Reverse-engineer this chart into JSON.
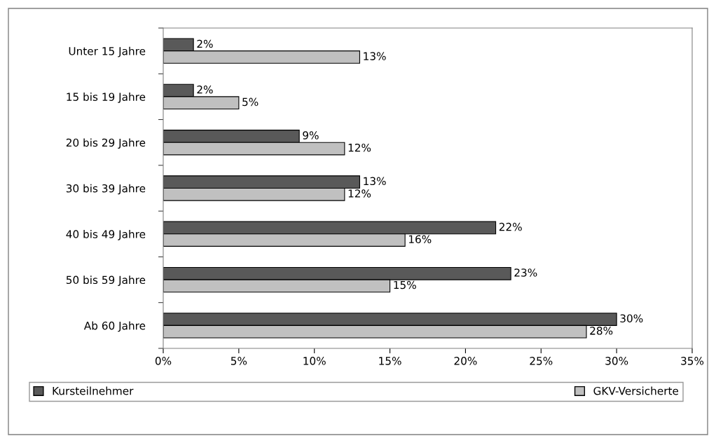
{
  "chart_data": {
    "type": "bar",
    "orientation": "horizontal",
    "categories": [
      "Unter 15 Jahre",
      "15 bis 19 Jahre",
      "20 bis 29 Jahre",
      "30 bis 39 Jahre",
      "40 bis 49 Jahre",
      "50 bis 59 Jahre",
      "Ab 60 Jahre"
    ],
    "series": [
      {
        "name": "Kursteilnehmer",
        "color": "#595959",
        "values": [
          2,
          2,
          9,
          13,
          22,
          23,
          30
        ],
        "value_labels": [
          "2%",
          "2%",
          "9%",
          "13%",
          "22%",
          "23%",
          "30%"
        ]
      },
      {
        "name": "GKV-Versicherte",
        "color": "#c0c0c0",
        "values": [
          13,
          5,
          12,
          12,
          16,
          15,
          28
        ],
        "value_labels": [
          "13%",
          "5%",
          "12%",
          "12%",
          "16%",
          "15%",
          "28%"
        ]
      }
    ],
    "xlim": [
      0,
      35
    ],
    "xticks": [
      {
        "value": 0,
        "label": "0%"
      },
      {
        "value": 5,
        "label": "5%"
      },
      {
        "value": 10,
        "label": "10%"
      },
      {
        "value": 15,
        "label": "15%"
      },
      {
        "value": 20,
        "label": "20%"
      },
      {
        "value": 25,
        "label": "25%"
      },
      {
        "value": 30,
        "label": "30%"
      },
      {
        "value": 35,
        "label": "35%"
      }
    ],
    "grid": false,
    "legend": "bottom"
  }
}
